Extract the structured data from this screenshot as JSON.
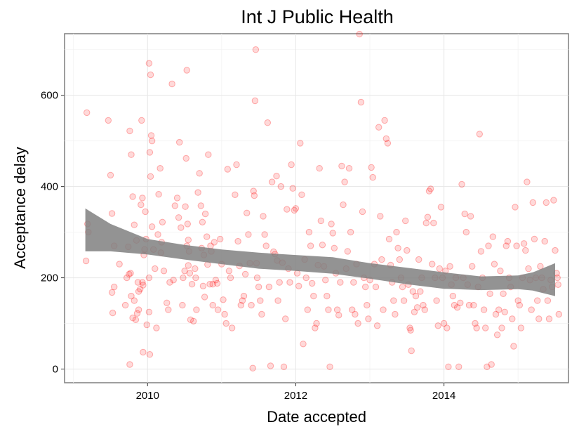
{
  "chart_data": {
    "type": "scatter",
    "title": "Int J Public Health",
    "xlabel": "Date accepted",
    "ylabel": "Acceptance delay",
    "xlim": [
      2008.88,
      2015.68
    ],
    "ylim": [
      -30,
      735
    ],
    "x_ticks": [
      2010,
      2012,
      2014
    ],
    "x_tick_labels": [
      "2010",
      "2012",
      "2014"
    ],
    "y_ticks": [
      0,
      200,
      400,
      600
    ],
    "y_tick_labels": [
      "0",
      "200",
      "400",
      "600"
    ],
    "grid": true,
    "point_color": "#ff0000",
    "band_color": "#808080",
    "smooth": {
      "x": [
        2009.16,
        2009.5,
        2010,
        2010.5,
        2011,
        2011.5,
        2012,
        2012.5,
        2013,
        2013.5,
        2014,
        2014.5,
        2015,
        2015.2,
        2015.5
      ],
      "lower": [
        258,
        258,
        251,
        240,
        230,
        220,
        215,
        209,
        198,
        186,
        176,
        173,
        175,
        172,
        160
      ],
      "upper": [
        352,
        318,
        285,
        272,
        262,
        255,
        250,
        245,
        232,
        222,
        212,
        203,
        205,
        212,
        232
      ]
    },
    "points": [
      [
        2009.18,
        562
      ],
      [
        2009.19,
        318
      ],
      [
        2009.2,
        300
      ],
      [
        2009.17,
        237
      ],
      [
        2009.47,
        545
      ],
      [
        2009.5,
        425
      ],
      [
        2009.52,
        341
      ],
      [
        2009.55,
        270
      ],
      [
        2009.55,
        180
      ],
      [
        2009.52,
        168
      ],
      [
        2009.53,
        123
      ],
      [
        2009.62,
        230
      ],
      [
        2009.72,
        200
      ],
      [
        2009.75,
        208
      ],
      [
        2009.7,
        140
      ],
      [
        2009.78,
        160
      ],
      [
        2009.82,
        150
      ],
      [
        2009.87,
        190
      ],
      [
        2009.88,
        170
      ],
      [
        2009.94,
        184
      ],
      [
        2009.76,
        522
      ],
      [
        2009.78,
        470
      ],
      [
        2009.8,
        378
      ],
      [
        2009.82,
        316
      ],
      [
        2009.85,
        282
      ],
      [
        2009.74,
        268
      ],
      [
        2009.77,
        210
      ],
      [
        2009.8,
        112
      ],
      [
        2009.84,
        108
      ],
      [
        2009.86,
        122
      ],
      [
        2009.76,
        10
      ],
      [
        2009.92,
        545
      ],
      [
        2009.93,
        375
      ],
      [
        2009.91,
        360
      ],
      [
        2009.97,
        345
      ],
      [
        2009.98,
        285
      ],
      [
        2009.96,
        262
      ],
      [
        2009.95,
        250
      ],
      [
        2009.93,
        190
      ],
      [
        2009.9,
        175
      ],
      [
        2009.88,
        130
      ],
      [
        2009.99,
        97
      ],
      [
        2009.94,
        37
      ],
      [
        2010.02,
        670
      ],
      [
        2010.04,
        645
      ],
      [
        2010.05,
        512
      ],
      [
        2010.06,
        500
      ],
      [
        2010.03,
        475
      ],
      [
        2010.04,
        422
      ],
      [
        2010.06,
        312
      ],
      [
        2010.08,
        262
      ],
      [
        2010.1,
        220
      ],
      [
        2010.02,
        200
      ],
      [
        2010.02,
        125
      ],
      [
        2010.03,
        32
      ],
      [
        2010.12,
        90
      ],
      [
        2010.14,
        295
      ],
      [
        2010.15,
        383
      ],
      [
        2010.17,
        440
      ],
      [
        2010.2,
        322
      ],
      [
        2010.19,
        278
      ],
      [
        2010.18,
        255
      ],
      [
        2010.22,
        215
      ],
      [
        2010.26,
        145
      ],
      [
        2010.28,
        130
      ],
      [
        2010.3,
        190
      ],
      [
        2010.33,
        625
      ],
      [
        2010.35,
        195
      ],
      [
        2010.37,
        358
      ],
      [
        2010.4,
        375
      ],
      [
        2010.43,
        497
      ],
      [
        2010.42,
        332
      ],
      [
        2010.45,
        310
      ],
      [
        2010.48,
        200
      ],
      [
        2010.5,
        215
      ],
      [
        2010.47,
        140
      ],
      [
        2010.53,
        655
      ],
      [
        2010.52,
        462
      ],
      [
        2010.51,
        356
      ],
      [
        2010.54,
        318
      ],
      [
        2010.55,
        283
      ],
      [
        2010.53,
        270
      ],
      [
        2010.56,
        258
      ],
      [
        2010.55,
        227
      ],
      [
        2010.57,
        210
      ],
      [
        2010.6,
        186
      ],
      [
        2010.58,
        108
      ],
      [
        2010.62,
        105
      ],
      [
        2010.64,
        220
      ],
      [
        2010.65,
        200
      ],
      [
        2010.66,
        130
      ],
      [
        2010.68,
        387
      ],
      [
        2010.7,
        429
      ],
      [
        2010.72,
        358
      ],
      [
        2010.74,
        322
      ],
      [
        2010.73,
        265
      ],
      [
        2010.76,
        250
      ],
      [
        2010.75,
        182
      ],
      [
        2010.77,
        158
      ],
      [
        2010.78,
        340
      ],
      [
        2010.8,
        290
      ],
      [
        2010.81,
        229
      ],
      [
        2010.82,
        470
      ],
      [
        2010.84,
        186
      ],
      [
        2010.85,
        270
      ],
      [
        2010.86,
        258
      ],
      [
        2010.88,
        186
      ],
      [
        2010.88,
        140
      ],
      [
        2010.9,
        278
      ],
      [
        2010.92,
        195
      ],
      [
        2010.94,
        188
      ],
      [
        2010.95,
        130
      ],
      [
        2010.98,
        285
      ],
      [
        2011.0,
        230
      ],
      [
        2011.02,
        152
      ],
      [
        2011.04,
        120
      ],
      [
        2011.06,
        100
      ],
      [
        2011.08,
        438
      ],
      [
        2011.1,
        215
      ],
      [
        2011.12,
        200
      ],
      [
        2011.14,
        90
      ],
      [
        2011.18,
        382
      ],
      [
        2011.2,
        448
      ],
      [
        2011.22,
        280
      ],
      [
        2011.24,
        226
      ],
      [
        2011.26,
        140
      ],
      [
        2011.28,
        150
      ],
      [
        2011.3,
        160
      ],
      [
        2011.32,
        208
      ],
      [
        2011.34,
        342
      ],
      [
        2011.36,
        295
      ],
      [
        2011.38,
        232
      ],
      [
        2011.4,
        140
      ],
      [
        2011.42,
        2
      ],
      [
        2011.43,
        390
      ],
      [
        2011.44,
        380
      ],
      [
        2011.45,
        588
      ],
      [
        2011.46,
        700
      ],
      [
        2011.47,
        232
      ],
      [
        2011.48,
        200
      ],
      [
        2011.5,
        180
      ],
      [
        2011.52,
        150
      ],
      [
        2011.54,
        120
      ],
      [
        2011.56,
        335
      ],
      [
        2011.58,
        295
      ],
      [
        2011.6,
        270
      ],
      [
        2011.62,
        540
      ],
      [
        2011.64,
        180
      ],
      [
        2011.66,
        7
      ],
      [
        2011.68,
        410
      ],
      [
        2011.7,
        257
      ],
      [
        2011.72,
        252
      ],
      [
        2011.74,
        423
      ],
      [
        2011.75,
        238
      ],
      [
        2011.76,
        150
      ],
      [
        2011.78,
        190
      ],
      [
        2011.8,
        400
      ],
      [
        2011.82,
        233
      ],
      [
        2011.84,
        5
      ],
      [
        2011.86,
        110
      ],
      [
        2011.88,
        350
      ],
      [
        2011.9,
        220
      ],
      [
        2011.92,
        190
      ],
      [
        2011.94,
        448
      ],
      [
        2011.96,
        396
      ],
      [
        2011.98,
        348
      ],
      [
        2012.0,
        352
      ],
      [
        2012.02,
        210
      ],
      [
        2012.04,
        182
      ],
      [
        2012.06,
        495
      ],
      [
        2012.08,
        382
      ],
      [
        2012.1,
        55
      ],
      [
        2012.12,
        240
      ],
      [
        2012.14,
        200
      ],
      [
        2012.16,
        130
      ],
      [
        2012.18,
        300
      ],
      [
        2012.2,
        270
      ],
      [
        2012.22,
        188
      ],
      [
        2012.24,
        160
      ],
      [
        2012.26,
        90
      ],
      [
        2012.28,
        100
      ],
      [
        2012.3,
        228
      ],
      [
        2012.32,
        440
      ],
      [
        2012.34,
        325
      ],
      [
        2012.36,
        272
      ],
      [
        2012.38,
        225
      ],
      [
        2012.4,
        195
      ],
      [
        2012.42,
        160
      ],
      [
        2012.44,
        130
      ],
      [
        2012.46,
        5
      ],
      [
        2012.48,
        318
      ],
      [
        2012.5,
        298
      ],
      [
        2012.52,
        265
      ],
      [
        2012.54,
        210
      ],
      [
        2012.56,
        130
      ],
      [
        2012.58,
        118
      ],
      [
        2012.6,
        190
      ],
      [
        2012.62,
        445
      ],
      [
        2012.64,
        360
      ],
      [
        2012.66,
        410
      ],
      [
        2012.68,
        220
      ],
      [
        2012.7,
        258
      ],
      [
        2012.72,
        440
      ],
      [
        2012.74,
        300
      ],
      [
        2012.76,
        130
      ],
      [
        2012.78,
        190
      ],
      [
        2012.8,
        120
      ],
      [
        2012.82,
        230
      ],
      [
        2012.84,
        100
      ],
      [
        2012.86,
        734
      ],
      [
        2012.88,
        585
      ],
      [
        2012.9,
        345
      ],
      [
        2012.92,
        200
      ],
      [
        2012.94,
        180
      ],
      [
        2012.96,
        140
      ],
      [
        2012.98,
        110
      ],
      [
        2013.0,
        195
      ],
      [
        2013.02,
        442
      ],
      [
        2013.04,
        420
      ],
      [
        2013.06,
        230
      ],
      [
        2013.08,
        180
      ],
      [
        2013.1,
        95
      ],
      [
        2013.12,
        530
      ],
      [
        2013.14,
        335
      ],
      [
        2013.16,
        240
      ],
      [
        2013.18,
        130
      ],
      [
        2013.2,
        545
      ],
      [
        2013.22,
        505
      ],
      [
        2013.24,
        495
      ],
      [
        2013.26,
        285
      ],
      [
        2013.28,
        228
      ],
      [
        2013.3,
        190
      ],
      [
        2013.32,
        150
      ],
      [
        2013.34,
        120
      ],
      [
        2013.36,
        300
      ],
      [
        2013.38,
        265
      ],
      [
        2013.4,
        240
      ],
      [
        2013.42,
        200
      ],
      [
        2013.44,
        180
      ],
      [
        2013.46,
        150
      ],
      [
        2013.48,
        325
      ],
      [
        2013.5,
        260
      ],
      [
        2013.52,
        185
      ],
      [
        2013.54,
        90
      ],
      [
        2013.55,
        85
      ],
      [
        2013.56,
        40
      ],
      [
        2013.58,
        170
      ],
      [
        2013.6,
        125
      ],
      [
        2013.62,
        160
      ],
      [
        2013.64,
        135
      ],
      [
        2013.66,
        240
      ],
      [
        2013.68,
        170
      ],
      [
        2013.7,
        200
      ],
      [
        2013.72,
        140
      ],
      [
        2013.74,
        130
      ],
      [
        2013.76,
        320
      ],
      [
        2013.78,
        333
      ],
      [
        2013.8,
        390
      ],
      [
        2013.82,
        395
      ],
      [
        2013.84,
        230
      ],
      [
        2013.86,
        320
      ],
      [
        2013.88,
        200
      ],
      [
        2013.9,
        150
      ],
      [
        2013.92,
        95
      ],
      [
        2013.94,
        220
      ],
      [
        2013.96,
        355
      ],
      [
        2013.98,
        200
      ],
      [
        2014.0,
        100
      ],
      [
        2014.02,
        215
      ],
      [
        2014.04,
        90
      ],
      [
        2014.06,
        5
      ],
      [
        2014.08,
        225
      ],
      [
        2014.1,
        185
      ],
      [
        2014.12,
        160
      ],
      [
        2014.14,
        140
      ],
      [
        2014.16,
        200
      ],
      [
        2014.18,
        135
      ],
      [
        2014.2,
        5
      ],
      [
        2014.22,
        145
      ],
      [
        2014.24,
        405
      ],
      [
        2014.26,
        200
      ],
      [
        2014.28,
        340
      ],
      [
        2014.3,
        300
      ],
      [
        2014.32,
        185
      ],
      [
        2014.34,
        140
      ],
      [
        2014.36,
        335
      ],
      [
        2014.38,
        225
      ],
      [
        2014.4,
        140
      ],
      [
        2014.42,
        100
      ],
      [
        2014.44,
        90
      ],
      [
        2014.46,
        180
      ],
      [
        2014.48,
        515
      ],
      [
        2014.5,
        258
      ],
      [
        2014.52,
        200
      ],
      [
        2014.54,
        130
      ],
      [
        2014.56,
        90
      ],
      [
        2014.58,
        5
      ],
      [
        2014.6,
        270
      ],
      [
        2014.62,
        165
      ],
      [
        2014.64,
        10
      ],
      [
        2014.66,
        290
      ],
      [
        2014.68,
        230
      ],
      [
        2014.7,
        120
      ],
      [
        2014.72,
        75
      ],
      [
        2014.74,
        130
      ],
      [
        2014.76,
        215
      ],
      [
        2014.78,
        90
      ],
      [
        2014.8,
        165
      ],
      [
        2014.82,
        125
      ],
      [
        2014.84,
        270
      ],
      [
        2014.86,
        280
      ],
      [
        2014.88,
        200
      ],
      [
        2014.9,
        180
      ],
      [
        2014.92,
        110
      ],
      [
        2014.94,
        50
      ],
      [
        2014.96,
        355
      ],
      [
        2014.98,
        270
      ],
      [
        2015.0,
        150
      ],
      [
        2015.02,
        140
      ],
      [
        2015.04,
        90
      ],
      [
        2015.06,
        200
      ],
      [
        2015.08,
        275
      ],
      [
        2015.1,
        260
      ],
      [
        2015.12,
        410
      ],
      [
        2015.14,
        220
      ],
      [
        2015.16,
        195
      ],
      [
        2015.18,
        130
      ],
      [
        2015.2,
        365
      ],
      [
        2015.22,
        285
      ],
      [
        2015.24,
        200
      ],
      [
        2015.26,
        150
      ],
      [
        2015.28,
        110
      ],
      [
        2015.3,
        225
      ],
      [
        2015.32,
        200
      ],
      [
        2015.34,
        175
      ],
      [
        2015.36,
        280
      ],
      [
        2015.38,
        365
      ],
      [
        2015.4,
        150
      ],
      [
        2015.42,
        110
      ],
      [
        2015.44,
        195
      ],
      [
        2015.46,
        180
      ],
      [
        2015.48,
        370
      ],
      [
        2015.5,
        260
      ],
      [
        2015.52,
        210
      ],
      [
        2015.53,
        200
      ],
      [
        2015.54,
        185
      ],
      [
        2015.55,
        120
      ]
    ]
  }
}
